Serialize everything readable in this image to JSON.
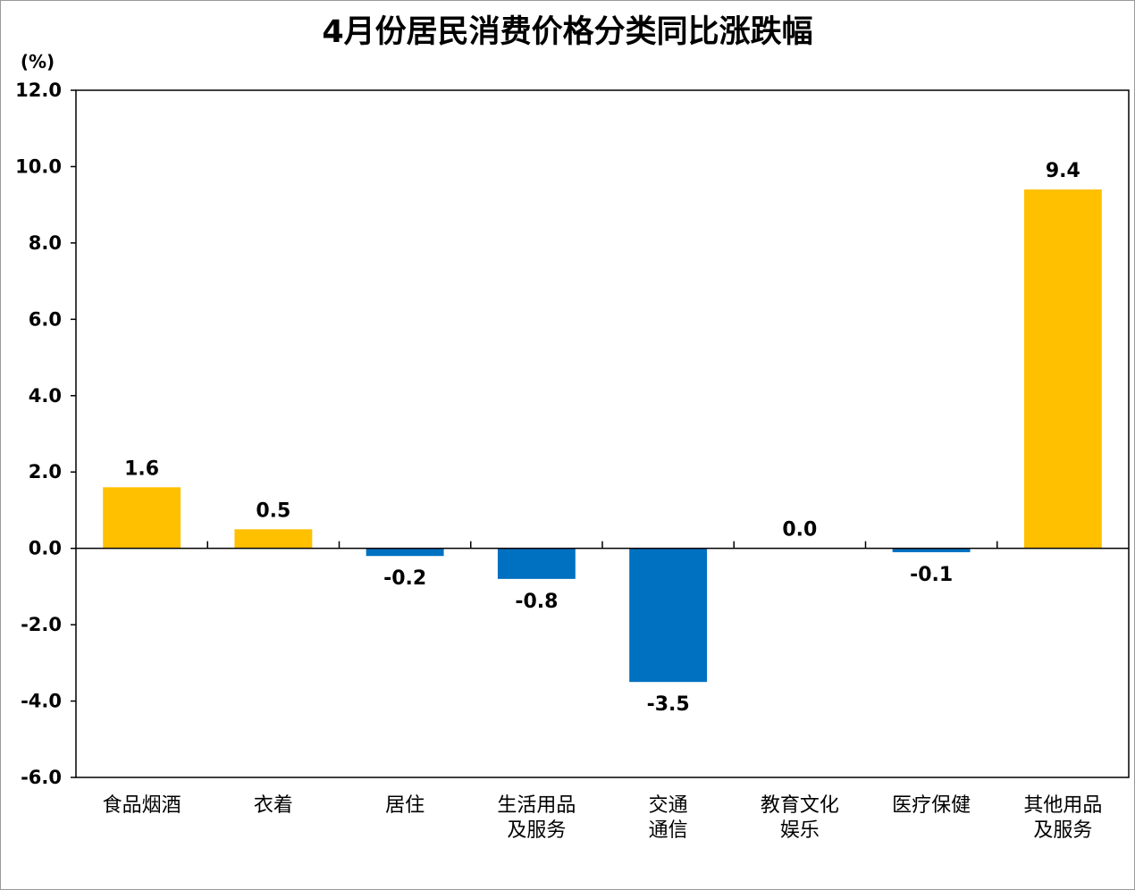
{
  "chart_data": {
    "type": "bar",
    "title": "4月份居民消费价格分类同比涨跌幅",
    "unit_label": "(%)",
    "categories": [
      [
        "食品烟酒"
      ],
      [
        "衣着"
      ],
      [
        "居住"
      ],
      [
        "生活用品",
        "及服务"
      ],
      [
        "交通",
        "通信"
      ],
      [
        "教育文化",
        "娱乐"
      ],
      [
        "医疗保健"
      ],
      [
        "其他用品",
        "及服务"
      ]
    ],
    "values": [
      1.6,
      0.5,
      -0.2,
      -0.8,
      -3.5,
      0.0,
      -0.1,
      9.4
    ],
    "value_labels": [
      "1.6",
      "0.5",
      "-0.2",
      "-0.8",
      "-3.5",
      "0.0",
      "-0.1",
      "9.4"
    ],
    "ylim": [
      -6.0,
      12.0
    ],
    "yticks": [
      -6.0,
      -4.0,
      -2.0,
      0.0,
      2.0,
      4.0,
      6.0,
      8.0,
      10.0,
      12.0
    ],
    "ytick_labels": [
      "-6.0",
      "-4.0",
      "-2.0",
      "0.0",
      "2.0",
      "4.0",
      "6.0",
      "8.0",
      "10.0",
      "12.0"
    ],
    "grid": false,
    "legend": "none",
    "colors": {
      "positive": "#FFC000",
      "negative": "#0070C0",
      "axis": "#000000"
    }
  }
}
